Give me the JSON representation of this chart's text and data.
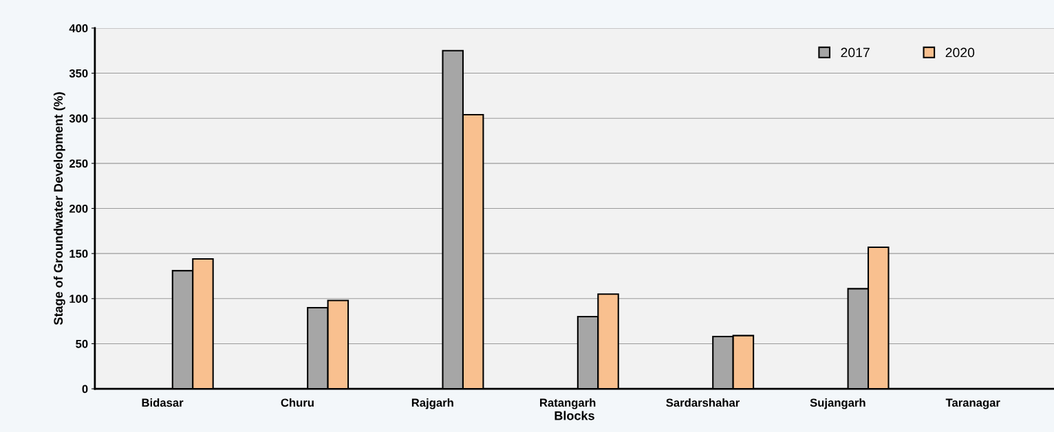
{
  "chart_data": {
    "type": "bar",
    "xlabel": "Blocks",
    "ylabel": "Stage of Groundwater Development (%)",
    "categories": [
      "Bidasar",
      "Churu",
      "Rajgarh",
      "Ratangarh",
      "Sardarshahar",
      "Sujangarh",
      "Taranagar"
    ],
    "series": [
      {
        "name": "2017",
        "color": "#a6a6a6",
        "values": [
          131,
          90,
          375,
          80,
          58,
          111,
          null
        ]
      },
      {
        "name": "2020",
        "color": "#f9c08f",
        "values": [
          144,
          98,
          304,
          105,
          59,
          157,
          null
        ]
      }
    ],
    "ylim": [
      0,
      400
    ],
    "yticks": [
      0,
      50,
      100,
      150,
      200,
      250,
      300,
      350,
      400
    ],
    "grid": "y",
    "legend": "top right"
  }
}
